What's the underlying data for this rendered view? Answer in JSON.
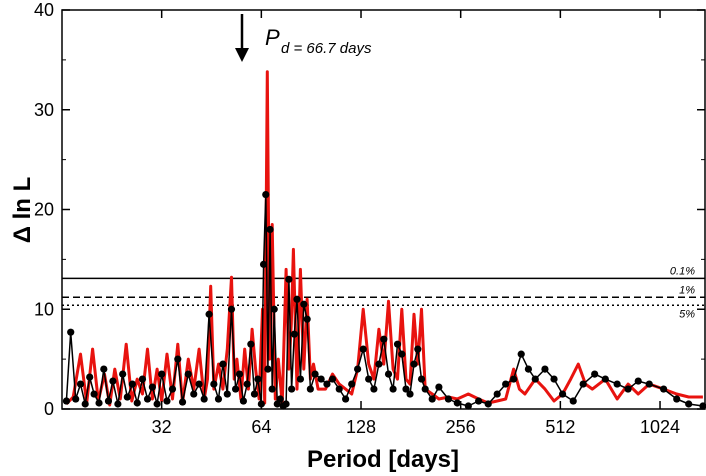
{
  "chart_data": {
    "type": "line",
    "xlabel": "Period [days]",
    "ylabel": "Δ ln L",
    "xscale": "log2",
    "xlim": [
      16,
      1400
    ],
    "ylim": [
      0,
      40
    ],
    "xticks": [
      32,
      64,
      128,
      256,
      512,
      1024
    ],
    "yticks": [
      0,
      10,
      20,
      30,
      40
    ],
    "grid": false,
    "colors": {
      "red_series": "#e8130f",
      "black_series": "#000000"
    },
    "thresholds": [
      {
        "label": "0.1%",
        "value": 13.1,
        "style": "solid"
      },
      {
        "label": "1%",
        "value": 11.2,
        "style": "dashed"
      },
      {
        "label": "5%",
        "value": 10.4,
        "style": "dotted"
      }
    ],
    "annotation": {
      "symbol": "P",
      "subscript": "d = 66.7 days",
      "x": 66.7,
      "marker": "down-arrow"
    },
    "series": [
      {
        "style": "red-line",
        "x": [
          16.5,
          17.3,
          18.2,
          19.0,
          19.8,
          20.6,
          21.5,
          22.3,
          23.1,
          24.0,
          25.0,
          26.0,
          27.0,
          28.0,
          29.0,
          30.0,
          31.0,
          32.0,
          33.2,
          34.5,
          35.8,
          37.0,
          38.5,
          40.0,
          41.5,
          43.0,
          44.0,
          45.0,
          46.0,
          47.5,
          49.0,
          50.5,
          52.0,
          53.0,
          54.0,
          55.5,
          57.0,
          58.5,
          60.0,
          61.5,
          63.0,
          64.5,
          65.5,
          66.7,
          67.8,
          69.0,
          70.5,
          72.0,
          74.0,
          76.0,
          77.5,
          78.8,
          80.0,
          82.0,
          84.0,
          86.0,
          88.0,
          90.0,
          92.0,
          95.0,
          100.0,
          105.0,
          110.0,
          115.0,
          120.0,
          125.0,
          130.0,
          135.0,
          140.0,
          145.0,
          150.0,
          155.0,
          160.0,
          165.0,
          170.0,
          175.0,
          180.0,
          185.0,
          190.0,
          195.0,
          200.0,
          210.0,
          220.0,
          235.0,
          250.0,
          270.0,
          290.0,
          310.0,
          330.0,
          350.0,
          370.0,
          385.0,
          400.0,
          430.0,
          460.0,
          490.0,
          520.0,
          550.0,
          580.0,
          610.0,
          640.0,
          700.0,
          760.0,
          820.0,
          880.0,
          950.0,
          1050.0,
          1150.0,
          1250.0,
          1380.0
        ],
        "values": [
          0.5,
          1.2,
          5.5,
          0.6,
          6.0,
          0.8,
          3.5,
          0.4,
          4.0,
          1.0,
          6.5,
          0.8,
          3.0,
          1.5,
          6.0,
          1.0,
          4.0,
          0.8,
          5.5,
          1.0,
          6.5,
          0.6,
          5.0,
          2.0,
          6.0,
          1.0,
          3.0,
          12.3,
          2.0,
          4.5,
          2.0,
          6.0,
          13.2,
          3.0,
          5.0,
          1.0,
          6.0,
          2.0,
          8.0,
          4.0,
          1.0,
          10.0,
          0.6,
          33.8,
          5.0,
          18.5,
          1.0,
          5.0,
          0.5,
          14.0,
          4.0,
          8.5,
          16.0,
          2.0,
          14.0,
          4.0,
          11.0,
          3.0,
          4.5,
          2.0,
          2.0,
          3.5,
          2.5,
          2.0,
          1.5,
          4.0,
          10.0,
          4.5,
          3.0,
          8.0,
          4.5,
          10.8,
          4.0,
          3.0,
          10.0,
          3.0,
          2.5,
          9.5,
          4.5,
          10.0,
          2.0,
          1.5,
          1.0,
          1.2,
          1.0,
          1.5,
          1.0,
          0.6,
          0.8,
          1.0,
          4.0,
          2.0,
          1.5,
          3.0,
          2.0,
          0.8,
          1.5,
          3.0,
          4.5,
          2.5,
          2.0,
          3.0,
          1.0,
          2.5,
          1.5,
          2.5,
          2.0,
          1.5,
          1.2,
          1.2
        ]
      },
      {
        "style": "black-line-with-dots",
        "x": [
          16.5,
          17.0,
          17.6,
          18.2,
          18.8,
          19.4,
          20.0,
          20.7,
          21.4,
          22.1,
          22.8,
          23.6,
          24.4,
          25.2,
          26.1,
          27.0,
          28.0,
          29.0,
          30.0,
          31.0,
          32.0,
          33.2,
          34.5,
          35.8,
          37.0,
          38.5,
          40.0,
          41.5,
          43.0,
          44.5,
          46.0,
          47.5,
          49.0,
          50.5,
          52.0,
          53.5,
          55.0,
          56.5,
          58.0,
          59.5,
          61.0,
          62.5,
          64.0,
          65.0,
          66.0,
          67.0,
          68.0,
          69.0,
          70.0,
          71.5,
          73.0,
          74.5,
          76.0,
          77.5,
          79.0,
          80.5,
          82.0,
          84.0,
          86.0,
          88.0,
          90.0,
          93.0,
          97.0,
          101.0,
          105.0,
          110.0,
          115.0,
          120.0,
          125.0,
          130.0,
          135.0,
          140.0,
          145.0,
          150.0,
          155.0,
          160.0,
          165.0,
          170.0,
          175.0,
          180.0,
          185.0,
          190.0,
          195.0,
          200.0,
          210.0,
          220.0,
          235.0,
          250.0,
          270.0,
          290.0,
          310.0,
          330.0,
          350.0,
          370.0,
          390.0,
          410.0,
          430.0,
          460.0,
          490.0,
          520.0,
          560.0,
          600.0,
          650.0,
          700.0,
          760.0,
          820.0,
          880.0,
          950.0,
          1050.0,
          1150.0,
          1250.0,
          1380.0
        ],
        "values": [
          0.8,
          7.7,
          1.0,
          2.5,
          0.5,
          3.2,
          1.5,
          0.6,
          4.0,
          0.8,
          2.8,
          0.5,
          3.5,
          1.2,
          2.5,
          0.6,
          3.0,
          1.0,
          2.2,
          0.5,
          3.5,
          0.8,
          2.0,
          5.0,
          0.7,
          3.5,
          1.5,
          2.5,
          1.0,
          9.5,
          2.5,
          1.0,
          4.5,
          1.5,
          10.0,
          2.0,
          3.5,
          0.8,
          2.5,
          6.5,
          1.5,
          3.0,
          0.5,
          14.5,
          21.5,
          4.0,
          18.0,
          2.0,
          10.0,
          0.5,
          1.0,
          0.3,
          0.5,
          13.0,
          2.0,
          7.5,
          11.0,
          3.0,
          10.5,
          9.0,
          2.0,
          3.5,
          3.0,
          2.5,
          3.0,
          2.0,
          1.0,
          2.5,
          4.0,
          6.0,
          3.0,
          2.0,
          4.5,
          7.0,
          3.5,
          2.0,
          6.5,
          5.5,
          2.0,
          1.5,
          4.5,
          6.0,
          3.0,
          2.0,
          1.0,
          2.2,
          1.0,
          0.6,
          0.3,
          0.8,
          0.5,
          1.5,
          2.5,
          3.0,
          5.5,
          4.0,
          3.0,
          4.0,
          3.0,
          1.5,
          0.8,
          2.5,
          3.5,
          3.0,
          2.5,
          2.0,
          2.8,
          2.5,
          2.0,
          1.0,
          0.5,
          0.3
        ]
      }
    ]
  }
}
